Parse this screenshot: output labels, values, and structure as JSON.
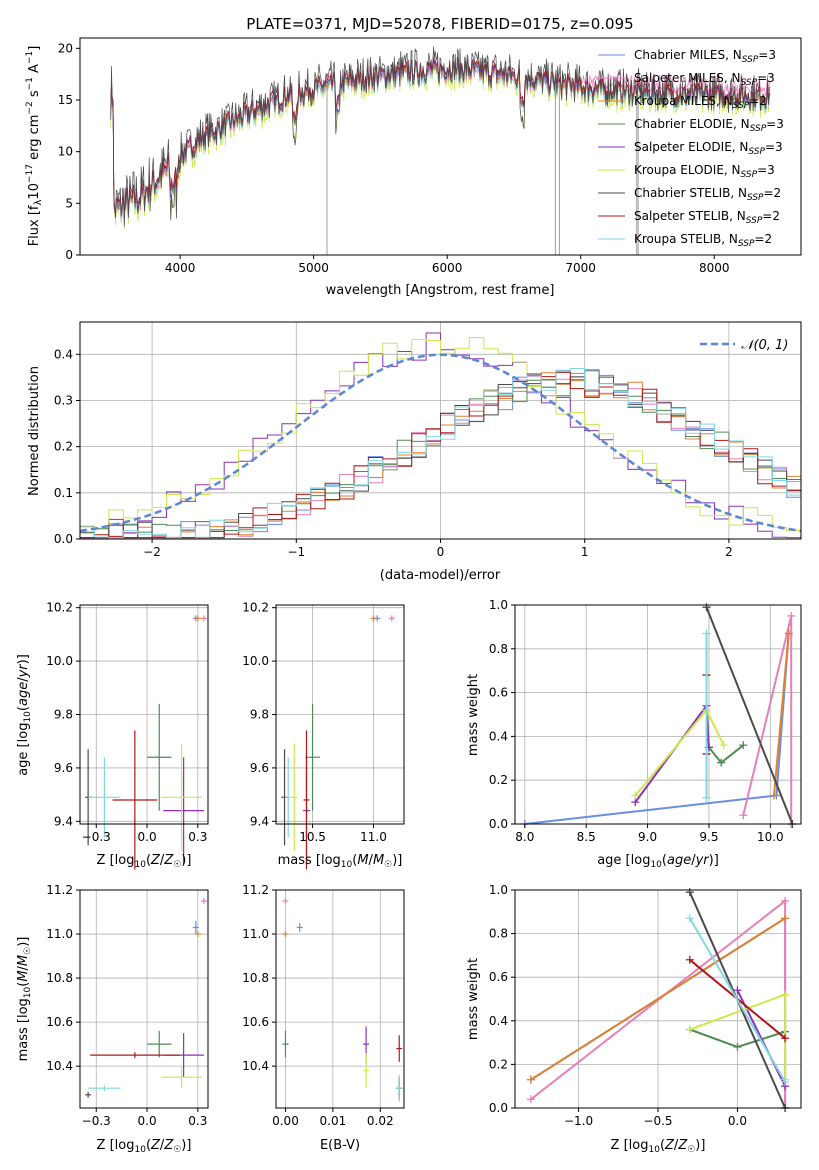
{
  "figure": {
    "title": "PLATE=0371, MJD=52078, FIBERID=0175, z=0.095"
  },
  "colors": {
    "Chabrier MILES": "#6a8ee0",
    "Salpeter MILES": "#e87fb6",
    "Kroupa MILES": "#e08030",
    "Chabrier ELODIE": "#4f8c55",
    "Salpeter ELODIE": "#8a32b8",
    "Kroupa ELODIE": "#cde84a",
    "Chabrier STELIB": "#4a4a4a",
    "Salpeter STELIB": "#b01818",
    "Kroupa STELIB": "#80d8e0"
  },
  "chart_data": [
    {
      "id": "spectrum",
      "type": "line",
      "title": "PLATE=0371, MJD=52078, FIBERID=0175, z=0.095",
      "xlabel": "wavelength [Angstrom, rest frame]",
      "ylabel": "Flux [f_λ 10^-17 erg cm^-2 s^-1 A^-1]",
      "xlim": [
        3250,
        8650
      ],
      "ylim": [
        0,
        21
      ],
      "xticks": [
        4000,
        5000,
        6000,
        7000,
        8000
      ],
      "yticks": [
        0,
        5,
        10,
        15,
        20
      ],
      "grid": false,
      "legend_position": "top-right",
      "legend": [
        "Chabrier MILES, N_SSP=3",
        "Salpeter MILES, N_SSP=3",
        "Kroupa MILES, N_SSP=2",
        "Chabrier ELODIE, N_SSP=3",
        "Salpeter ELODIE, N_SSP=3",
        "Kroupa ELODIE, N_SSP=3",
        "Chabrier STELIB, N_SSP=2",
        "Salpeter STELIB, N_SSP=2",
        "Kroupa STELIB, N_SSP=2"
      ],
      "continuum": [
        [
          3500,
          4.2
        ],
        [
          3700,
          5.5
        ],
        [
          3850,
          7.5
        ],
        [
          4000,
          9.5
        ],
        [
          4200,
          11.5
        ],
        [
          4500,
          13.5
        ],
        [
          4800,
          15.3
        ],
        [
          5100,
          16.3
        ],
        [
          5400,
          17.0
        ],
        [
          5700,
          17.6
        ],
        [
          6000,
          17.9
        ],
        [
          6300,
          17.6
        ],
        [
          6600,
          17.0
        ],
        [
          6900,
          16.3
        ],
        [
          7200,
          15.8
        ],
        [
          7500,
          15.5
        ],
        [
          7800,
          15.4
        ],
        [
          8100,
          15.3
        ],
        [
          8400,
          15.2
        ]
      ],
      "spikes": [
        [
          5100,
          0
        ],
        [
          6810,
          0
        ],
        [
          6840,
          0
        ],
        [
          7420,
          0
        ],
        [
          7430,
          0
        ]
      ]
    },
    {
      "id": "residuals",
      "type": "line",
      "xlabel": "(data-model)/error",
      "ylabel": "Normed distribution",
      "xlim": [
        -2.5,
        2.5
      ],
      "ylim": [
        0,
        0.47
      ],
      "xticks": [
        -2,
        -1,
        0,
        1,
        2
      ],
      "yticks": [
        0.0,
        0.1,
        0.2,
        0.3,
        0.4
      ],
      "grid": true,
      "legend_position": "top-right",
      "reference_curve": "𝒩(0, 1)",
      "group_a_peak": 0.0,
      "group_b_peak": 0.9
    },
    {
      "id": "age-vs-Z",
      "type": "scatter",
      "xlabel": "Z [log10(Z/Z☉)]",
      "ylabel": "age [log10(age/yr)]",
      "xlim": [
        -0.33,
        0.3
      ],
      "ylim": [
        9.39,
        10.21
      ],
      "xticks": [
        -0.25,
        0.0,
        0.25
      ],
      "yticks": [
        9.4,
        9.6,
        9.8,
        10.0,
        10.2
      ],
      "grid": true,
      "points": [
        {
          "series": "Chabrier MILES",
          "x": 0.24,
          "y": 10.16,
          "xerr": 0.0,
          "yerr": 0.0
        },
        {
          "series": "Salpeter MILES",
          "x": 0.28,
          "y": 10.16,
          "xerr": 0.0,
          "yerr": 0.0
        },
        {
          "series": "Kroupa MILES",
          "x": 0.25,
          "y": 10.16,
          "xerr": 0.0,
          "yerr": 0.0
        },
        {
          "series": "Chabrier ELODIE",
          "x": 0.06,
          "y": 9.64,
          "xerr": 0.06,
          "yerr": 0.2
        },
        {
          "series": "Salpeter ELODIE",
          "x": 0.18,
          "y": 9.44,
          "xerr": 0.1,
          "yerr": 0.2
        },
        {
          "series": "Kroupa ELODIE",
          "x": 0.17,
          "y": 9.49,
          "xerr": 0.1,
          "yerr": 0.2
        },
        {
          "series": "Chabrier STELIB",
          "x": -0.29,
          "y": 9.49,
          "xerr": 0.0,
          "yerr": 0.18
        },
        {
          "series": "Salpeter STELIB",
          "x": -0.06,
          "y": 9.48,
          "xerr": 0.11,
          "yerr": 0.26
        },
        {
          "series": "Kroupa STELIB",
          "x": -0.21,
          "y": 9.49,
          "xerr": 0.08,
          "yerr": 0.15
        }
      ]
    },
    {
      "id": "age-vs-mass",
      "type": "scatter",
      "xlabel": "mass [log10(M/M☉)]",
      "ylabel": "",
      "xlim": [
        10.2,
        11.25
      ],
      "ylim": [
        9.39,
        10.21
      ],
      "xticks": [
        10.5,
        11.0
      ],
      "yticks": [
        9.4,
        9.6,
        9.8,
        10.0,
        10.2
      ],
      "grid": true,
      "points": [
        {
          "series": "Chabrier MILES",
          "x": 11.03,
          "y": 10.16,
          "xerr": 0.0,
          "yerr": 0.0
        },
        {
          "series": "Salpeter MILES",
          "x": 11.15,
          "y": 10.16,
          "xerr": 0.0,
          "yerr": 0.0
        },
        {
          "series": "Kroupa MILES",
          "x": 11.0,
          "y": 10.16,
          "xerr": 0.0,
          "yerr": 0.0
        },
        {
          "series": "Chabrier ELODIE",
          "x": 10.5,
          "y": 9.64,
          "xerr": 0.06,
          "yerr": 0.2
        },
        {
          "series": "Salpeter ELODIE",
          "x": 10.45,
          "y": 9.44,
          "xerr": 0.03,
          "yerr": 0.2
        },
        {
          "series": "Kroupa ELODIE",
          "x": 10.35,
          "y": 9.49,
          "xerr": 0.0,
          "yerr": 0.2
        },
        {
          "series": "Chabrier STELIB",
          "x": 10.27,
          "y": 9.49,
          "xerr": 0.02,
          "yerr": 0.18
        },
        {
          "series": "Salpeter STELIB",
          "x": 10.45,
          "y": 9.48,
          "xerr": 0.0,
          "yerr": 0.26
        },
        {
          "series": "Kroupa STELIB",
          "x": 10.3,
          "y": 9.49,
          "xerr": 0.02,
          "yerr": 0.15
        }
      ]
    },
    {
      "id": "weight-vs-age",
      "type": "line",
      "xlabel": "age [log10(age/yr)]",
      "ylabel": "mass weight",
      "xlim": [
        7.92,
        10.25
      ],
      "ylim": [
        0,
        1
      ],
      "xticks": [
        8.0,
        8.5,
        9.0,
        9.5,
        10.0
      ],
      "yticks": [
        0.0,
        0.2,
        0.4,
        0.6,
        0.8,
        1.0
      ],
      "grid": true,
      "series": [
        {
          "name": "Chabrier MILES",
          "x": [
            8.0,
            10.05,
            10.15
          ],
          "y": [
            0.0,
            0.13,
            0.87
          ]
        },
        {
          "name": "Salpeter MILES",
          "x": [
            9.78,
            10.17,
            10.17
          ],
          "y": [
            0.04,
            0.95,
            0.0
          ]
        },
        {
          "name": "Kroupa MILES",
          "x": [
            10.03,
            10.15
          ],
          "y": [
            0.13,
            0.87
          ]
        },
        {
          "name": "Chabrier ELODIE",
          "x": [
            9.5,
            9.6,
            9.78
          ],
          "y": [
            0.35,
            0.28,
            0.36
          ]
        },
        {
          "name": "Salpeter ELODIE",
          "x": [
            8.9,
            9.48,
            9.5
          ],
          "y": [
            0.1,
            0.54,
            0.35
          ]
        },
        {
          "name": "Kroupa ELODIE",
          "x": [
            8.9,
            9.48,
            9.62
          ],
          "y": [
            0.13,
            0.52,
            0.36
          ]
        },
        {
          "name": "Chabrier STELIB",
          "x": [
            9.48,
            10.18
          ],
          "y": [
            0.99,
            0.0
          ]
        },
        {
          "name": "Salpeter STELIB",
          "x": [
            9.48,
            9.48
          ],
          "y": [
            0.68,
            0.32
          ]
        },
        {
          "name": "Kroupa STELIB",
          "x": [
            9.48,
            9.48
          ],
          "y": [
            0.87,
            0.12
          ]
        }
      ]
    },
    {
      "id": "mass-vs-Z",
      "type": "scatter",
      "xlabel": "Z [log10(Z/Z☉)]",
      "ylabel": "mass [log10(M/M☉)]",
      "xlim": [
        -0.33,
        0.3
      ],
      "ylim": [
        10.21,
        11.2
      ],
      "xticks": [
        -0.25,
        0.0,
        0.25
      ],
      "yticks": [
        10.4,
        10.6,
        10.8,
        11.0,
        11.2
      ],
      "grid": true,
      "points": [
        {
          "series": "Chabrier MILES",
          "x": 0.24,
          "y": 11.03,
          "xerr": 0.0,
          "yerr": 0.03
        },
        {
          "series": "Salpeter MILES",
          "x": 0.28,
          "y": 11.15,
          "xerr": 0.0,
          "yerr": 0.0
        },
        {
          "series": "Kroupa MILES",
          "x": 0.25,
          "y": 11.0,
          "xerr": 0.0,
          "yerr": 0.0
        },
        {
          "series": "Chabrier ELODIE",
          "x": 0.06,
          "y": 10.5,
          "xerr": 0.06,
          "yerr": 0.06
        },
        {
          "series": "Salpeter ELODIE",
          "x": 0.18,
          "y": 10.45,
          "xerr": 0.1,
          "yerr": 0.1
        },
        {
          "series": "Kroupa ELODIE",
          "x": 0.17,
          "y": 10.35,
          "xerr": 0.1,
          "yerr": 0.05
        },
        {
          "series": "Chabrier STELIB",
          "x": -0.29,
          "y": 10.27,
          "xerr": 0.0,
          "yerr": 0.0
        },
        {
          "series": "Salpeter STELIB",
          "x": -0.06,
          "y": 10.45,
          "xerr": 0.22,
          "yerr": 0.0
        },
        {
          "series": "Kroupa STELIB",
          "x": -0.21,
          "y": 10.3,
          "xerr": 0.08,
          "yerr": 0.0
        }
      ]
    },
    {
      "id": "mass-vs-ebv",
      "type": "scatter",
      "xlabel": "E(B-V)",
      "ylabel": "",
      "xlim": [
        -0.002,
        0.025
      ],
      "ylim": [
        10.21,
        11.2
      ],
      "xticks": [
        0.0,
        0.01,
        0.02
      ],
      "yticks": [
        10.4,
        10.6,
        10.8,
        11.0,
        11.2
      ],
      "grid": true,
      "points": [
        {
          "series": "Chabrier MILES",
          "x": 0.003,
          "y": 11.03,
          "xerr": 0.0,
          "yerr": 0.02
        },
        {
          "series": "Salpeter MILES",
          "x": 0.0,
          "y": 11.15,
          "xerr": 0.0,
          "yerr": 0.0
        },
        {
          "series": "Kroupa MILES",
          "x": 0.0,
          "y": 11.0,
          "xerr": 0.0,
          "yerr": 0.0
        },
        {
          "series": "Chabrier ELODIE",
          "x": 0.0,
          "y": 10.5,
          "xerr": 0.0,
          "yerr": 0.06
        },
        {
          "series": "Salpeter ELODIE",
          "x": 0.017,
          "y": 10.5,
          "xerr": 0.0,
          "yerr": 0.08
        },
        {
          "series": "Kroupa ELODIE",
          "x": 0.017,
          "y": 10.38,
          "xerr": 0.0,
          "yerr": 0.08
        },
        {
          "series": "Chabrier STELIB",
          "x": 0.024,
          "y": 10.3,
          "xerr": 0.0,
          "yerr": 0.05
        },
        {
          "series": "Salpeter STELIB",
          "x": 0.024,
          "y": 10.48,
          "xerr": 0.0,
          "yerr": 0.06
        },
        {
          "series": "Kroupa STELIB",
          "x": 0.024,
          "y": 10.3,
          "xerr": 0.0,
          "yerr": 0.06
        }
      ]
    },
    {
      "id": "weight-vs-Z",
      "type": "line",
      "xlabel": "Z [log10(Z/Z☉)]",
      "ylabel": "mass weight",
      "xlim": [
        -1.4,
        0.4
      ],
      "ylim": [
        0,
        1
      ],
      "xticks": [
        -1.0,
        -0.5,
        0.0
      ],
      "yticks": [
        0.0,
        0.2,
        0.4,
        0.6,
        0.8,
        1.0
      ],
      "grid": true,
      "series": [
        {
          "name": "Chabrier MILES",
          "x": [
            -1.3,
            0.3,
            0.3
          ],
          "y": [
            0.13,
            0.87,
            0.0
          ]
        },
        {
          "name": "Salpeter MILES",
          "x": [
            -1.3,
            0.3,
            0.3
          ],
          "y": [
            0.04,
            0.95,
            0.0
          ]
        },
        {
          "name": "Kroupa MILES",
          "x": [
            -1.3,
            0.3
          ],
          "y": [
            0.13,
            0.87
          ]
        },
        {
          "name": "Chabrier ELODIE",
          "x": [
            -0.3,
            0.0,
            0.3
          ],
          "y": [
            0.36,
            0.28,
            0.35
          ]
        },
        {
          "name": "Salpeter ELODIE",
          "x": [
            0.0,
            0.3
          ],
          "y": [
            0.54,
            0.1
          ]
        },
        {
          "name": "Kroupa ELODIE",
          "x": [
            -0.3,
            0.3,
            0.3
          ],
          "y": [
            0.36,
            0.52,
            0.13
          ]
        },
        {
          "name": "Chabrier STELIB",
          "x": [
            -0.3,
            0.3
          ],
          "y": [
            0.99,
            0.0
          ]
        },
        {
          "name": "Salpeter STELIB",
          "x": [
            -0.3,
            0.3
          ],
          "y": [
            0.68,
            0.32
          ]
        },
        {
          "name": "Kroupa STELIB",
          "x": [
            -0.3,
            0.3
          ],
          "y": [
            0.87,
            0.12
          ]
        }
      ]
    }
  ]
}
